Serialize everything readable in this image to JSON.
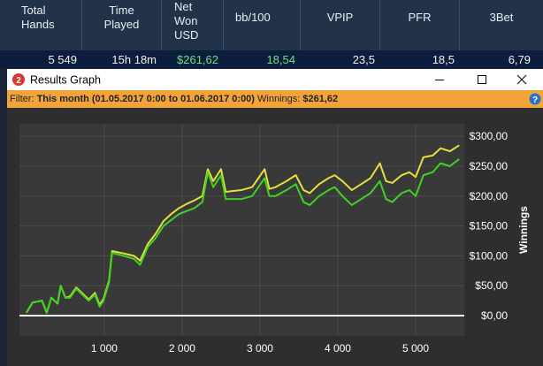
{
  "stats": {
    "headers": [
      "Total\nHands",
      "Time\nPlayed",
      "Net\nWon\nUSD",
      "bb/100",
      "VPIP",
      "PFR",
      "3Bet"
    ],
    "values": [
      "5 549",
      "15h 18m",
      "$261,62",
      "18,54",
      "23,5",
      "18,5",
      "6,79"
    ]
  },
  "window": {
    "app_icon": "2",
    "title": "Results Graph",
    "filter_label": "Filter:",
    "filter_value": "This month (01.05.2017 0:00 to 01.06.2017 0:00)",
    "winnings_label": "Winnings:",
    "winnings_value": "$261,62",
    "help_icon": "?"
  },
  "chart_data": {
    "type": "line",
    "y_label": "Winnings",
    "x": [
      0,
      80,
      200,
      260,
      320,
      400,
      440,
      500,
      560,
      640,
      720,
      800,
      880,
      940,
      990,
      1060,
      1100,
      1250,
      1380,
      1460,
      1560,
      1660,
      1760,
      1860,
      1960,
      2060,
      2160,
      2260,
      2330,
      2400,
      2500,
      2560,
      2620,
      2760,
      2900,
      3060,
      3120,
      3200,
      3340,
      3460,
      3560,
      3640,
      3760,
      3880,
      3960,
      4060,
      4180,
      4300,
      4420,
      4540,
      4620,
      4700,
      4820,
      4920,
      5000,
      5100,
      5220,
      5320,
      5440,
      5560
    ],
    "series": [
      {
        "color": "#e6df3c",
        "values": [
          5,
          22,
          25,
          5,
          30,
          20,
          50,
          30,
          32,
          47,
          37,
          27,
          38,
          18,
          28,
          58,
          108,
          104,
          100,
          92,
          120,
          137,
          158,
          170,
          180,
          187,
          193,
          200,
          245,
          225,
          245,
          207,
          208,
          210,
          215,
          245,
          212,
          215,
          225,
          235,
          210,
          205,
          220,
          230,
          235,
          225,
          210,
          220,
          230,
          255,
          225,
          222,
          235,
          240,
          232,
          265,
          268,
          280,
          275,
          285
        ]
      },
      {
        "color": "#3fd424",
        "values": [
          5,
          22,
          25,
          5,
          30,
          20,
          50,
          30,
          30,
          45,
          35,
          25,
          35,
          15,
          25,
          55,
          105,
          100,
          95,
          85,
          115,
          130,
          150,
          160,
          170,
          175,
          180,
          190,
          240,
          215,
          235,
          195,
          195,
          195,
          200,
          230,
          200,
          200,
          210,
          220,
          190,
          185,
          200,
          210,
          215,
          200,
          185,
          195,
          205,
          225,
          195,
          190,
          205,
          210,
          200,
          235,
          240,
          255,
          250,
          262
        ]
      }
    ],
    "xlim": [
      -90,
      5625
    ],
    "xticks": [
      {
        "value": 1000,
        "label": "1 000"
      },
      {
        "value": 2000,
        "label": "2 000"
      },
      {
        "value": 3000,
        "label": "3 000"
      },
      {
        "value": 4000,
        "label": "4 000"
      },
      {
        "value": 5000,
        "label": "5 000"
      }
    ],
    "ylim": [
      -34,
      321
    ],
    "yticks": [
      {
        "value": 0,
        "label": "$0,00"
      },
      {
        "value": 50,
        "label": "$50,00"
      },
      {
        "value": 100,
        "label": "$100,00"
      },
      {
        "value": 150,
        "label": "$150,00"
      },
      {
        "value": 200,
        "label": "$200,00"
      },
      {
        "value": 250,
        "label": "$250,00"
      },
      {
        "value": 300,
        "label": "$300,00"
      }
    ],
    "grid": true
  }
}
